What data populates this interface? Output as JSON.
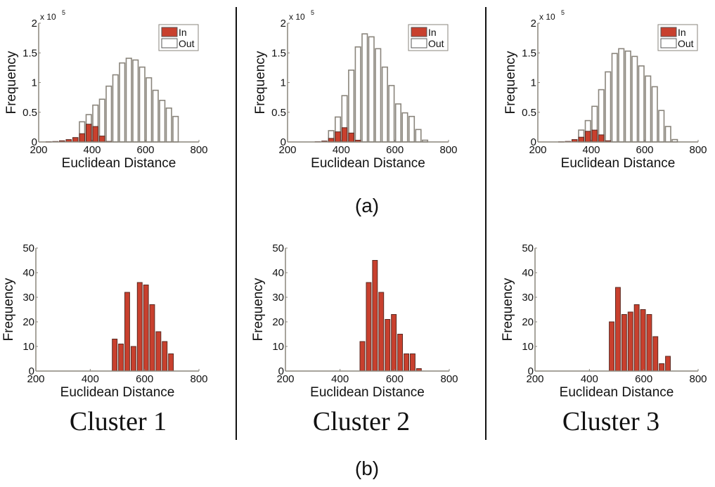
{
  "colors": {
    "in": "#c8402e",
    "out": "#ffffff",
    "edge": "#8a857c",
    "axis": "#8a857c",
    "divider": "#111111"
  },
  "captions": {
    "a": "(a)",
    "b": "(b)"
  },
  "clusters": [
    "Cluster 1",
    "Cluster 2",
    "Cluster 3"
  ],
  "chart_data": [
    {
      "type": "bar",
      "panel": "a",
      "cluster": "Cluster 1",
      "xlabel": "Euclidean Distance",
      "ylabel": "Frequency",
      "y_multiplier": "x 10^5",
      "exp_base": "x 10",
      "exp_power": "5",
      "xlim": [
        200,
        800
      ],
      "ylim": [
        0,
        2
      ],
      "xticks": [
        "200",
        "400",
        "600",
        "800"
      ],
      "yticks": [
        "0",
        "0.5",
        "1",
        "1.5",
        "2"
      ],
      "legend": {
        "position": "top-right",
        "entries": [
          "In",
          "Out"
        ]
      },
      "bin_width": 25,
      "series": [
        {
          "name": "Out",
          "x": [
            362.5,
            387.5,
            412.5,
            437.5,
            462.5,
            487.5,
            512.5,
            537.5,
            562.5,
            587.5,
            612.5,
            637.5,
            662.5,
            687.5,
            712.5
          ],
          "values": [
            0.34,
            0.46,
            0.62,
            0.72,
            0.94,
            1.13,
            1.33,
            1.41,
            1.38,
            1.26,
            1.08,
            0.87,
            0.7,
            0.57,
            0.43
          ]
        },
        {
          "name": "In",
          "x": [
            237.5,
            262.5,
            287.5,
            312.5,
            337.5,
            362.5,
            387.5,
            412.5,
            437.5,
            462.5
          ],
          "values": [
            0.003,
            0.008,
            0.02,
            0.04,
            0.075,
            0.14,
            0.3,
            0.26,
            0.1,
            0.01
          ]
        }
      ]
    },
    {
      "type": "bar",
      "panel": "a",
      "cluster": "Cluster 2",
      "xlabel": "Euclidean Distance",
      "ylabel": "Frequency",
      "y_multiplier": "x 10^5",
      "exp_base": "x 10",
      "exp_power": "5",
      "xlim": [
        200,
        800
      ],
      "ylim": [
        0,
        2
      ],
      "xticks": [
        "200",
        "400",
        "600",
        "800"
      ],
      "yticks": [
        "0",
        "0.5",
        "1",
        "1.5",
        "2"
      ],
      "legend": {
        "position": "top-right",
        "entries": [
          "In",
          "Out"
        ]
      },
      "bin_width": 25,
      "series": [
        {
          "name": "Out",
          "x": [
            362.5,
            387.5,
            412.5,
            437.5,
            462.5,
            487.5,
            512.5,
            537.5,
            562.5,
            587.5,
            612.5,
            637.5,
            662.5,
            687.5,
            712.5
          ],
          "values": [
            0.19,
            0.42,
            0.78,
            1.21,
            1.6,
            1.82,
            1.77,
            1.57,
            1.26,
            0.95,
            0.64,
            0.49,
            0.43,
            0.21,
            0.03
          ]
        },
        {
          "name": "In",
          "x": [
            312.5,
            337.5,
            362.5,
            387.5,
            412.5,
            437.5,
            462.5
          ],
          "values": [
            0.005,
            0.015,
            0.06,
            0.17,
            0.24,
            0.15,
            0.03
          ]
        }
      ]
    },
    {
      "type": "bar",
      "panel": "a",
      "cluster": "Cluster 3",
      "xlabel": "Euclidean Distance",
      "ylabel": "Frequency",
      "y_multiplier": "x 10^5",
      "exp_base": "x 10",
      "exp_power": "5",
      "xlim": [
        200,
        800
      ],
      "ylim": [
        0,
        2
      ],
      "xticks": [
        "200",
        "400",
        "600",
        "800"
      ],
      "yticks": [
        "0",
        "0.5",
        "1",
        "1.5",
        "2"
      ],
      "legend": {
        "position": "top-right",
        "entries": [
          "In",
          "Out"
        ]
      },
      "bin_width": 25,
      "series": [
        {
          "name": "Out",
          "x": [
            362.5,
            387.5,
            412.5,
            437.5,
            462.5,
            487.5,
            512.5,
            537.5,
            562.5,
            587.5,
            612.5,
            637.5,
            662.5,
            687.5,
            712.5
          ],
          "values": [
            0.2,
            0.36,
            0.6,
            0.88,
            1.18,
            1.49,
            1.57,
            1.53,
            1.44,
            1.28,
            1.11,
            0.93,
            0.53,
            0.26,
            0.04
          ]
        },
        {
          "name": "In",
          "x": [
            287.5,
            312.5,
            337.5,
            362.5,
            387.5,
            412.5,
            437.5,
            462.5
          ],
          "values": [
            0.003,
            0.01,
            0.04,
            0.08,
            0.18,
            0.2,
            0.12,
            0.02
          ]
        }
      ]
    },
    {
      "type": "bar",
      "panel": "b",
      "cluster": "Cluster 1",
      "xlabel": "Euclidean Distance",
      "ylabel": "Frequency",
      "xlim": [
        200,
        800
      ],
      "ylim": [
        0,
        50
      ],
      "xticks": [
        "200",
        "400",
        "600",
        "800"
      ],
      "yticks": [
        "0",
        "10",
        "20",
        "30",
        "40",
        "50"
      ],
      "bin_width": 23,
      "series": [
        {
          "name": "In",
          "x": [
            490,
            513,
            536,
            559,
            582,
            605,
            628,
            651,
            674,
            697
          ],
          "values": [
            13,
            11,
            32,
            10,
            36,
            35,
            27,
            16,
            12,
            7
          ]
        }
      ]
    },
    {
      "type": "bar",
      "panel": "b",
      "cluster": "Cluster 2",
      "xlabel": "Euclidean Distance",
      "ylabel": "Frequency",
      "xlim": [
        200,
        800
      ],
      "ylim": [
        0,
        50
      ],
      "xticks": [
        "200",
        "400",
        "600",
        "800"
      ],
      "yticks": [
        "0",
        "10",
        "20",
        "30",
        "40",
        "50"
      ],
      "bin_width": 23,
      "series": [
        {
          "name": "In",
          "x": [
            482,
            505,
            528,
            551,
            574,
            597,
            620,
            643,
            666,
            689
          ],
          "values": [
            12,
            36,
            45,
            32,
            21,
            23,
            15,
            7,
            7,
            1
          ]
        }
      ]
    },
    {
      "type": "bar",
      "panel": "b",
      "cluster": "Cluster 3",
      "xlabel": "Euclidean Distance",
      "ylabel": "Frequency",
      "xlim": [
        200,
        800
      ],
      "ylim": [
        0,
        50
      ],
      "xticks": [
        "200",
        "400",
        "600",
        "800"
      ],
      "yticks": [
        "0",
        "10",
        "20",
        "30",
        "40",
        "50"
      ],
      "bin_width": 23,
      "series": [
        {
          "name": "In",
          "x": [
            482,
            505,
            528,
            551,
            574,
            597,
            620,
            643,
            666,
            689
          ],
          "values": [
            20,
            34,
            23,
            24,
            27,
            25,
            23,
            14,
            3,
            6
          ]
        }
      ]
    }
  ]
}
